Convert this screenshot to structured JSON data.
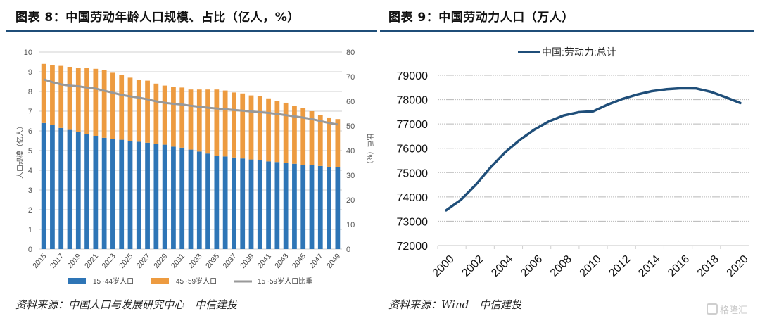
{
  "left_panel": {
    "title": "图表 8：中国劳动年龄人口规模、占比（亿人，%）",
    "source": "资料来源：中国人口与发展研究中心　中信建投"
  },
  "right_panel": {
    "title": "图表 9：中国劳动力人口（万人）",
    "source": "资料来源：Wind　中信建投"
  },
  "watermark": "格隆汇",
  "colors": {
    "blue": "#2e75b6",
    "orange": "#ed9b40",
    "gray_line": "#999999",
    "navy_line": "#1f4e79",
    "rule": "#1f4e79"
  },
  "chart_data": [
    {
      "type": "bar",
      "stacked": true,
      "title": "中国劳动年龄人口规模、占比（亿人，%）",
      "ylabel": "人口规模（亿人）",
      "y2label": "比重（%）",
      "ylim": [
        0,
        10
      ],
      "y2lim": [
        0,
        80
      ],
      "yticks": [
        0,
        1,
        2,
        3,
        4,
        5,
        6,
        7,
        8,
        9,
        10
      ],
      "y2ticks": [
        0,
        10,
        20,
        30,
        40,
        50,
        60,
        70,
        80
      ],
      "grid": true,
      "legend": "bottom",
      "categories": [
        "2015",
        "2016",
        "2017",
        "2018",
        "2019",
        "2020",
        "2021",
        "2022",
        "2023",
        "2024",
        "2025",
        "2026",
        "2027",
        "2028",
        "2029",
        "2030",
        "2031",
        "2032",
        "2033",
        "2034",
        "2035",
        "2036",
        "2037",
        "2038",
        "2039",
        "2040",
        "2041",
        "2042",
        "2043",
        "2044",
        "2045",
        "2046",
        "2047",
        "2048",
        "2049"
      ],
      "tick_labels": [
        "2015",
        "2017",
        "2019",
        "2021",
        "2023",
        "2025",
        "2027",
        "2029",
        "2031",
        "2033",
        "2035",
        "2037",
        "2039",
        "2041",
        "2043",
        "2045",
        "2047",
        "2049"
      ],
      "series": [
        {
          "name": "15~44岁人口",
          "axis": "left",
          "kind": "bar",
          "values": [
            6.4,
            6.3,
            6.15,
            6.05,
            5.95,
            5.85,
            5.75,
            5.65,
            5.6,
            5.55,
            5.5,
            5.45,
            5.4,
            5.35,
            5.3,
            5.2,
            5.15,
            5.05,
            4.95,
            4.85,
            4.75,
            4.7,
            4.65,
            4.6,
            4.55,
            4.5,
            4.45,
            4.42,
            4.38,
            4.33,
            4.28,
            4.25,
            4.22,
            4.18,
            4.15
          ]
        },
        {
          "name": "45~59岁人口",
          "axis": "left",
          "kind": "bar",
          "values": [
            3.0,
            3.05,
            3.15,
            3.2,
            3.25,
            3.35,
            3.4,
            3.45,
            3.35,
            3.3,
            3.2,
            3.15,
            3.15,
            3.05,
            3.0,
            3.05,
            3.05,
            3.05,
            3.15,
            3.25,
            3.35,
            3.35,
            3.3,
            3.3,
            3.25,
            3.25,
            3.2,
            3.1,
            3.05,
            2.95,
            2.87,
            2.75,
            2.6,
            2.5,
            2.45
          ]
        },
        {
          "name": "15~59岁人口比重",
          "axis": "right",
          "kind": "line",
          "values": [
            68.9,
            67.8,
            66.9,
            66.4,
            66.1,
            65.6,
            65.2,
            64.3,
            63.5,
            62.6,
            62.0,
            61.5,
            60.8,
            60.0,
            59.4,
            59.0,
            58.7,
            58.2,
            57.8,
            57.4,
            57.1,
            56.8,
            56.5,
            56.2,
            55.9,
            55.6,
            55.3,
            54.9,
            54.4,
            53.9,
            53.4,
            52.8,
            52.0,
            51.2,
            50.6
          ]
        }
      ]
    },
    {
      "type": "line",
      "title": "中国劳动力人口（万人）",
      "xlabel": "",
      "ylabel": "",
      "ylim": [
        72000,
        79000
      ],
      "yticks": [
        72000,
        73000,
        74000,
        75000,
        76000,
        77000,
        78000,
        79000
      ],
      "xticks": [
        "2000",
        "2002",
        "2004",
        "2006",
        "2008",
        "2010",
        "2012",
        "2014",
        "2016",
        "2018",
        "2020"
      ],
      "grid": true,
      "legend": "top",
      "x": [
        2000,
        2001,
        2002,
        2003,
        2004,
        2005,
        2006,
        2007,
        2008,
        2009,
        2010,
        2011,
        2012,
        2013,
        2014,
        2015,
        2016,
        2017,
        2018,
        2019,
        2020
      ],
      "series": [
        {
          "name": "中国:劳动力:总计",
          "values": [
            73450,
            73880,
            74490,
            75200,
            75830,
            76340,
            76770,
            77110,
            77350,
            77480,
            77520,
            77800,
            78030,
            78210,
            78350,
            78430,
            78470,
            78460,
            78320,
            78100,
            77860
          ]
        }
      ]
    }
  ]
}
